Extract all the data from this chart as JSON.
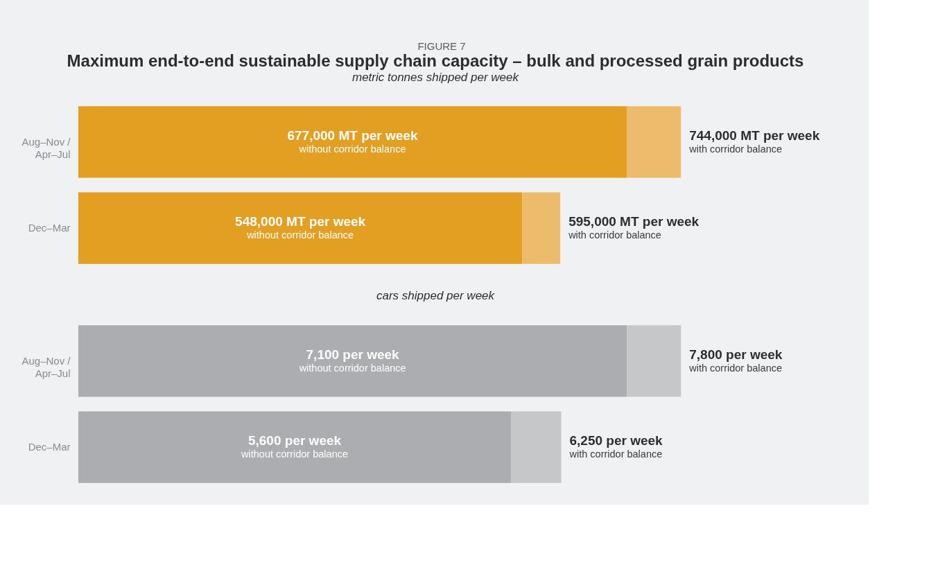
{
  "chart_data": [
    {
      "type": "bar",
      "orientation": "horizontal",
      "stacked": true,
      "title": "Maximum end-to-end sustainable supply chain capacity – bulk and processed grain products",
      "subtitle": "metric tonnes shipped per week",
      "categories": [
        "Aug–Nov / Apr–Jul",
        "Dec–Mar"
      ],
      "series": [
        {
          "color": "#e29f22",
          "values": [
            677000,
            548000
          ],
          "value_labels": [
            "677,000 MT per week",
            "548,000 MT per week"
          ]
        },
        {
          "color": "#ecbc6c",
          "values": [
            67000,
            47000
          ]
        }
      ],
      "totals": [
        "744,000 MT per week",
        "595,000 MT per week"
      ],
      "annotations": [
        "FIGURE 7",
        "without corridor balance",
        {
          "text": "with corridor balance",
          "x": 744000,
          "y": "Aug–Nov / Apr–Jul"
        },
        "without corridor balance",
        {
          "text": "with corridor balance",
          "x": 595000,
          "y": "Dec–Mar"
        }
      ]
    },
    {
      "type": "bar",
      "orientation": "horizontal",
      "stacked": true,
      "subtitle": "cars shipped per week",
      "categories": [
        "Aug–Nov / Apr–Jul",
        "Dec–Mar"
      ],
      "series": [
        {
          "color": "#acadb0",
          "values": [
            7100,
            5600
          ],
          "value_labels": [
            "7,100 per week",
            "5,600 per week"
          ]
        },
        {
          "color": "#c6c7c9",
          "values": [
            700,
            650
          ]
        }
      ],
      "totals": [
        "7,800 per week",
        "6,250 per week"
      ],
      "annotations": [
        "without corridor balance",
        {
          "text": "with corridor balance",
          "x": 7800,
          "y": "Aug–Nov / Apr–Jul"
        },
        "without corridor balance",
        {
          "text": "with corridor balance",
          "x": 6250,
          "y": "Dec–Mar"
        }
      ]
    }
  ]
}
